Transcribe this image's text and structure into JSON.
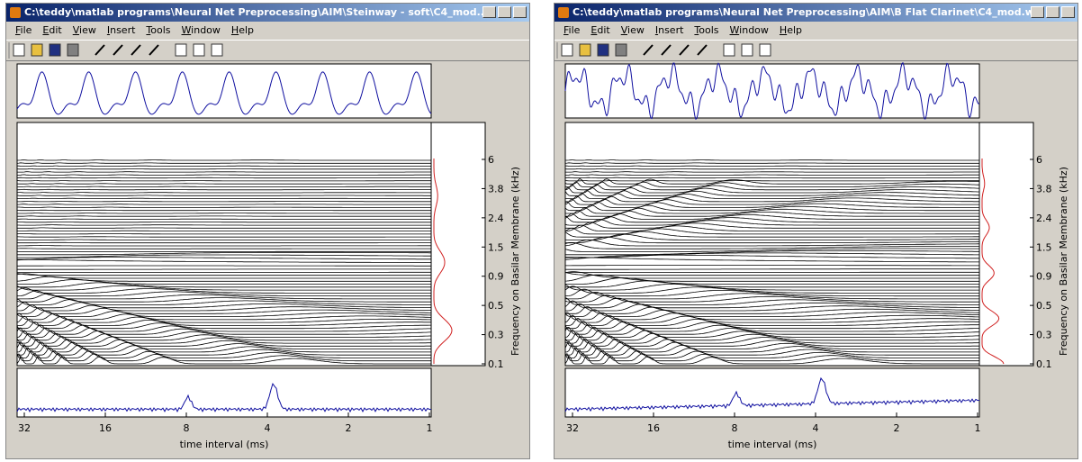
{
  "windows": [
    {
      "title": "C:\\teddy\\matlab programs\\Neural Net Preprocessing\\AIM\\Steinway - soft\\C4_mod...",
      "menu": [
        "File",
        "Edit",
        "View",
        "Insert",
        "Tools",
        "Window",
        "Help"
      ],
      "plot": {
        "xticks": [
          32,
          16,
          8,
          4,
          2,
          1
        ],
        "xlabel": "time interval (ms)",
        "yticks": [
          6,
          3.8,
          2.4,
          1.5,
          0.9,
          0.5,
          0.3,
          0.1
        ],
        "ylabel": "Frequency on Basilar Membrane (kHz)"
      }
    },
    {
      "title": "C:\\teddy\\matlab programs\\Neural Net Preprocessing\\AIM\\B Flat Clarinet\\C4_mod.w...",
      "menu": [
        "File",
        "Edit",
        "View",
        "Insert",
        "Tools",
        "Window",
        "Help"
      ],
      "plot": {
        "xticks": [
          32,
          16,
          8,
          4,
          2,
          1
        ],
        "xlabel": "time interval (ms)",
        "yticks": [
          6,
          3.8,
          2.4,
          1.5,
          0.9,
          0.5,
          0.3,
          0.1
        ],
        "ylabel": "Frequency on Basilar Membrane (kHz)"
      }
    }
  ]
}
